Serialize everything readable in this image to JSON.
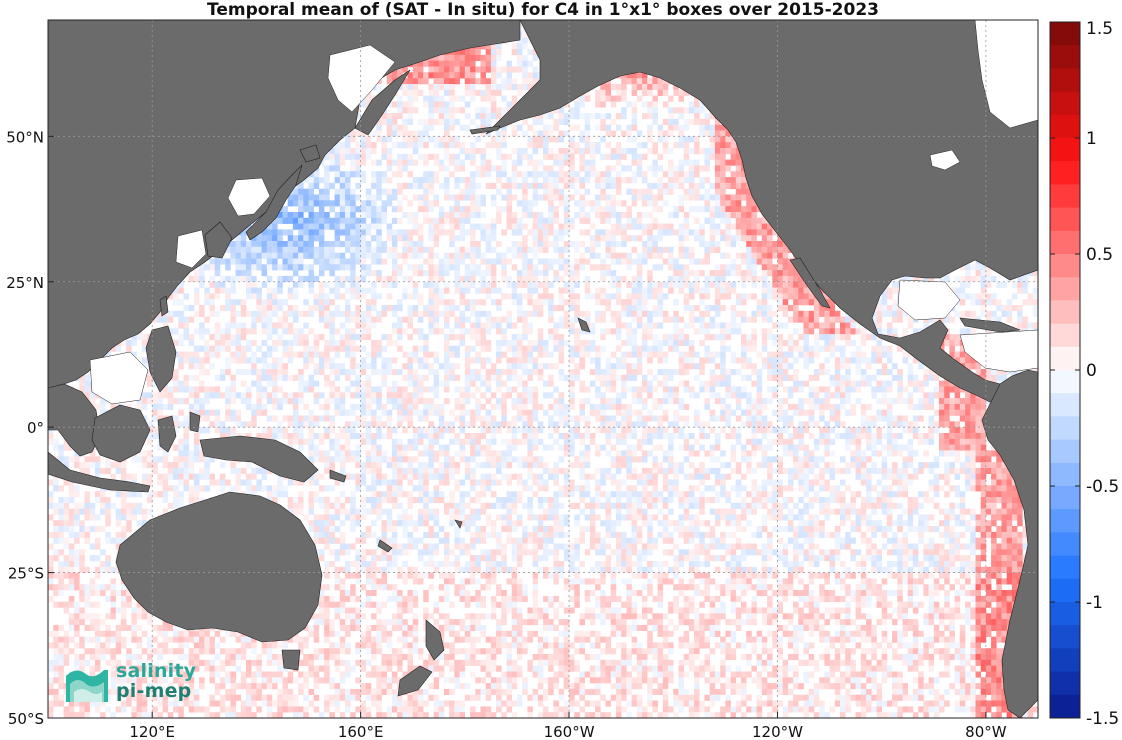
{
  "title": "Temporal mean of (SAT - In situ) for C4 in 1°x1° boxes over 2015-2023",
  "map": {
    "lon_range": [
      100,
      290
    ],
    "lat_range": [
      -50,
      70
    ],
    "lon_ticks": [
      {
        "lon": 120,
        "label": "120°E"
      },
      {
        "lon": 160,
        "label": "160°E"
      },
      {
        "lon": 200,
        "label": "160°W"
      },
      {
        "lon": 240,
        "label": "120°W"
      },
      {
        "lon": 280,
        "label": "80°W"
      }
    ],
    "lat_ticks": [
      {
        "lat": 50,
        "label": "50°N"
      },
      {
        "lat": 25,
        "label": "25°N"
      },
      {
        "lat": 0,
        "label": "0°"
      },
      {
        "lat": -25,
        "label": "25°S"
      },
      {
        "lat": -50,
        "label": "50°S"
      }
    ],
    "grid": true,
    "land_color": "#6b6b6b",
    "ocean_color": "#ffffff"
  },
  "colorbar": {
    "min": -1.5,
    "max": 1.5,
    "ticks": [
      {
        "value": 1.5,
        "label": "1.5"
      },
      {
        "value": 1,
        "label": "1"
      },
      {
        "value": 0.5,
        "label": "0.5"
      },
      {
        "value": 0,
        "label": "0"
      },
      {
        "value": -0.5,
        "label": "-0.5"
      },
      {
        "value": -1,
        "label": "-1"
      },
      {
        "value": -1.5,
        "label": "-1.5"
      }
    ],
    "colormap": "blue-white-red",
    "negative_color": "#0a1a8c",
    "positive_color": "#7a0a0a"
  },
  "logo": {
    "line1": "salinity",
    "line2": "pi-mep"
  }
}
